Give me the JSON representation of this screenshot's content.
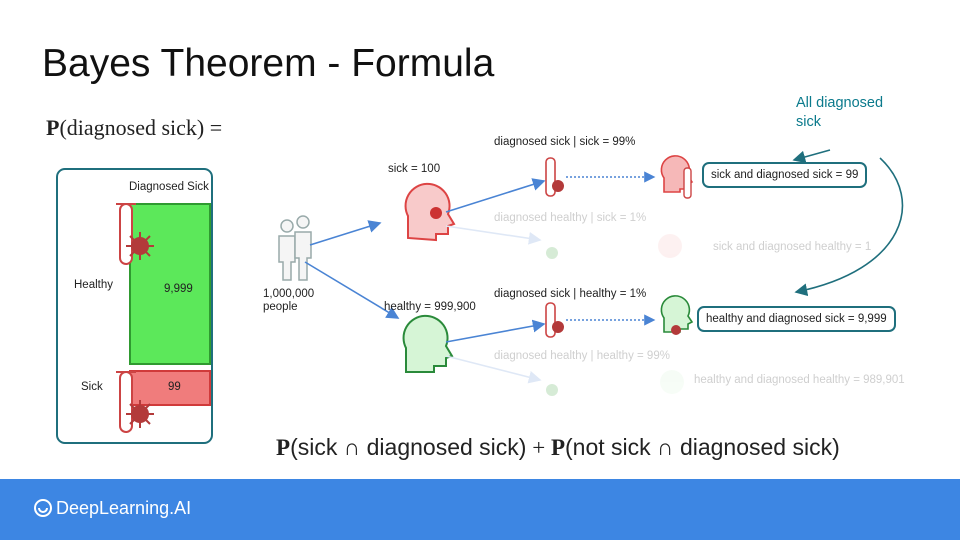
{
  "title": "Bayes Theorem - Formula",
  "formula_top": {
    "p": "P",
    "text": "(diagnosed sick) ="
  },
  "formula_bottom": {
    "p1": "P",
    "t1": "(sick ∩ diagnosed sick)",
    "plus": "+",
    "p2": "P",
    "t2": "(not sick ∩ diagnosed sick)"
  },
  "panel": {
    "header": "Diagnosed Sick",
    "healthy_label": "Healthy",
    "healthy_value": "9,999",
    "sick_label": "Sick",
    "sick_value": "99"
  },
  "population": {
    "count": "1,000,000",
    "unit": "people"
  },
  "branches": {
    "sick": "sick = 100",
    "healthy": "healthy = 999,900",
    "diag_sick_given_sick": "diagnosed sick | sick = 99%",
    "diag_healthy_given_sick": "diagnosed healthy | sick = 1%",
    "diag_sick_given_healthy": "diagnosed sick | healthy = 1%",
    "diag_healthy_given_healthy": "diagnosed healthy | healthy = 99%"
  },
  "outcomes": {
    "sick_and_diagnosed_sick": "sick and diagnosed sick = 99",
    "sick_and_diagnosed_healthy": "sick and diagnosed healthy = 1",
    "healthy_and_diagnosed_sick": "healthy and diagnosed sick = 9,999",
    "healthy_and_diagnosed_healthy": "healthy and diagnosed healthy = 989,901"
  },
  "callout": "All diagnosed sick",
  "footer": {
    "logo_text": "DeepLearning.AI"
  },
  "colors": {
    "teal": "#1f6f7d",
    "green": "#5ce85a",
    "red": "#f07c7c",
    "footer_blue": "#3d86e3",
    "arrow_blue": "#4a84d4"
  },
  "icons": [
    "people-icon",
    "sick-head-icon",
    "healthy-head-icon",
    "test-tube-icon",
    "virus-icon",
    "logo-icon"
  ]
}
